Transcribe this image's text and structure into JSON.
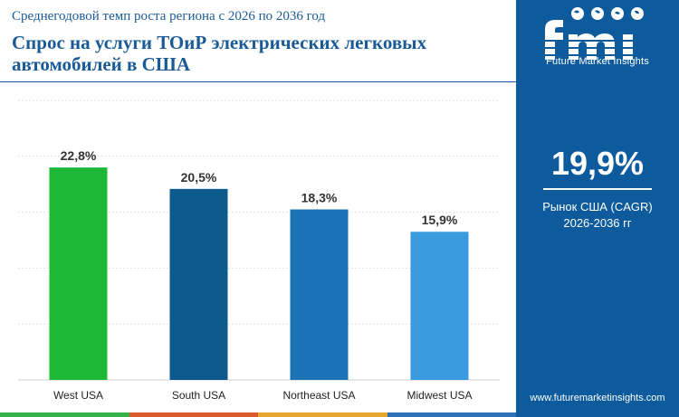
{
  "header": {
    "subtitle": "Среднегодовой темп роста региона с 2026 по 2036 год",
    "title": "Спрос на услуги ТОиР электрических легковых автомобилей в США"
  },
  "sidebar": {
    "logo_text": "Future Market Insights",
    "big_value": "19,9%",
    "label_line1": "Рынок США (CAGR)",
    "label_line2": "2026-2036 гг",
    "website": "www.futuremarketinsights.com"
  },
  "chart_data": {
    "type": "bar",
    "categories": [
      "West USA",
      "South USA",
      "Northeast USA",
      "Midwest USA"
    ],
    "values": [
      22.8,
      20.5,
      18.3,
      15.9
    ],
    "value_labels": [
      "22,8%",
      "20,5%",
      "18,3%",
      "15,9%"
    ],
    "bar_colors": [
      "#1db836",
      "#0d5a8e",
      "#1c72b4",
      "#3a9ae0"
    ],
    "ylim": [
      0,
      30
    ],
    "grid": true
  },
  "colors": {
    "brand_blue": "#0d5a9c",
    "title_blue": "#1a5a96",
    "strip": [
      "#36b24a",
      "#d95b2b",
      "#e8a72c",
      "#2d6fb5"
    ]
  }
}
